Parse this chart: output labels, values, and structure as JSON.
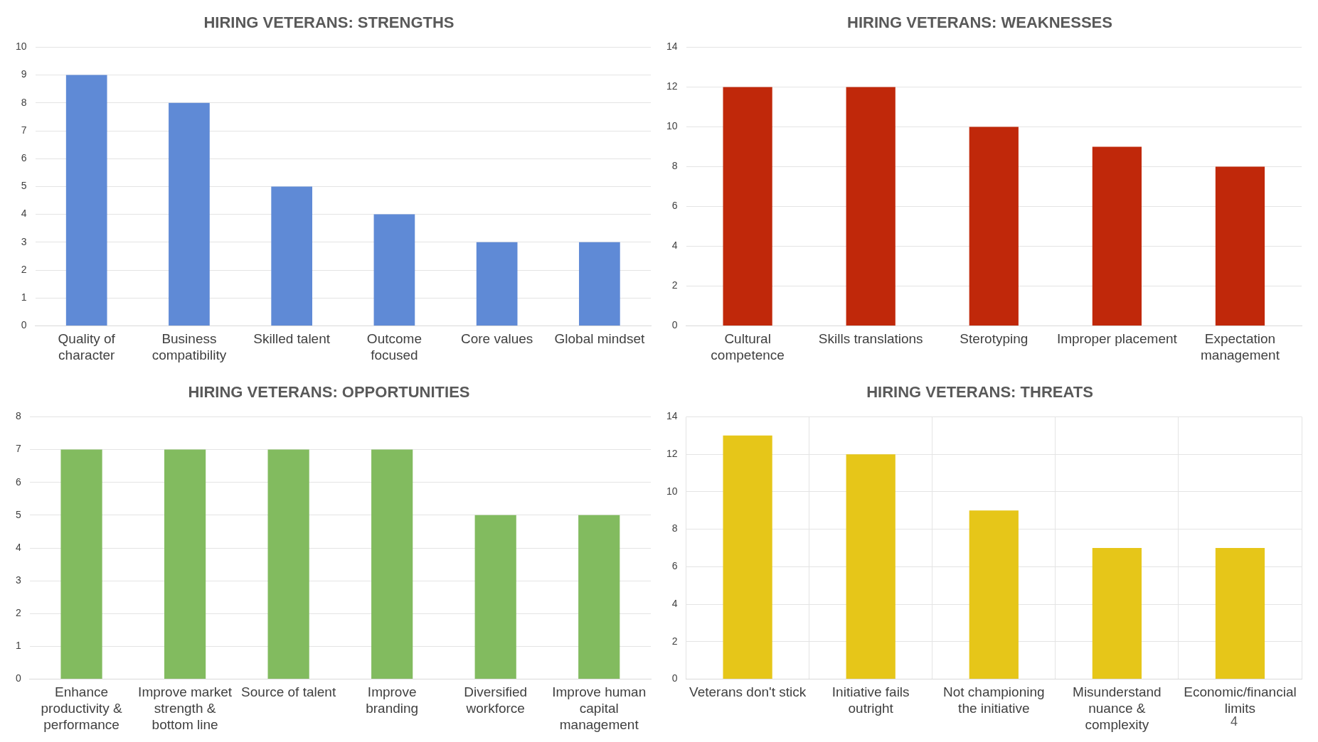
{
  "chart_data": [
    {
      "type": "bar",
      "title": "HIRING VETERANS: STRENGTHS",
      "categories": [
        "Quality of character",
        "Business compatibility",
        "Skilled talent",
        "Outcome focused",
        "Core values",
        "Global mindset"
      ],
      "values": [
        9,
        8,
        5,
        4,
        3,
        3
      ],
      "color": "#5f8ad6",
      "ylim": [
        0,
        10
      ],
      "yticks": [
        0,
        1,
        2,
        3,
        4,
        5,
        6,
        7,
        8,
        9,
        10
      ],
      "grid": "y"
    },
    {
      "type": "bar",
      "title": "HIRING VETERANS: WEAKNESSES",
      "categories": [
        "Cultural competence",
        "Skills translations",
        "Sterotyping",
        "Improper placement",
        "Expectation management"
      ],
      "values": [
        12,
        12,
        10,
        9,
        8
      ],
      "color": "#c0280a",
      "ylim": [
        0,
        14
      ],
      "yticks": [
        0,
        2,
        4,
        6,
        8,
        10,
        12,
        14
      ],
      "grid": "y"
    },
    {
      "type": "bar",
      "title": "HIRING VETERANS: OPPORTUNITIES",
      "categories": [
        "Enhance productivity & performance",
        "Improve market strength & bottom line",
        "Source of talent",
        "Improve branding",
        "Diversified workforce",
        "Improve human capital management"
      ],
      "values": [
        7,
        7,
        7,
        7,
        5,
        5
      ],
      "color": "#82bb5f",
      "ylim": [
        0,
        8
      ],
      "yticks": [
        0,
        1,
        2,
        3,
        4,
        5,
        6,
        7,
        8
      ],
      "grid": "y"
    },
    {
      "type": "bar",
      "title": "HIRING VETERANS: THREATS",
      "categories": [
        "Veterans don't stick",
        "Initiative fails outright",
        "Not championing the initiative",
        "Misunderstand nuance & complexity",
        "Economic/financial limits"
      ],
      "values": [
        13,
        12,
        9,
        7,
        7
      ],
      "color": "#e6c619",
      "ylim": [
        0,
        14
      ],
      "yticks": [
        0,
        2,
        4,
        6,
        8,
        10,
        12,
        14
      ],
      "grid": true,
      "annotations": [
        "4"
      ]
    }
  ]
}
